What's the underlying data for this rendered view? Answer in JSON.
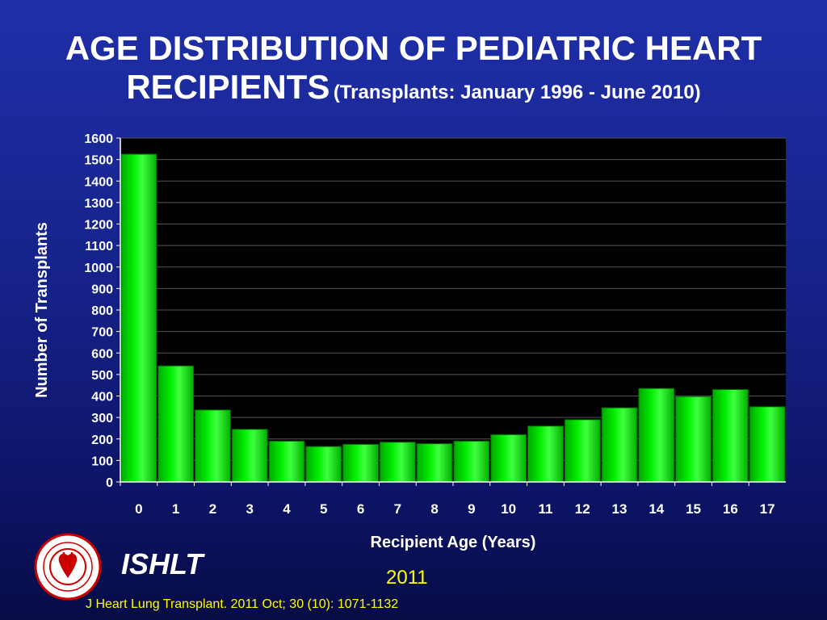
{
  "slide": {
    "title_main_line1": "AGE DISTRIBUTION OF PEDIATRIC HEART",
    "title_main_line2": "RECIPIENTS",
    "title_sub": "(Transplants: January 1996 - June 2010)",
    "org_name": "ISHLT",
    "year": "2011",
    "citation": "J Heart Lung Transplant. 2011 Oct; 30 (10): 1071-1132",
    "logo_icon": "ishlt-seal-icon"
  },
  "chart_data": {
    "type": "bar",
    "title": "",
    "xlabel": "Recipient Age (Years)",
    "ylabel": "Number of Transplants",
    "categories": [
      "0",
      "1",
      "2",
      "3",
      "4",
      "5",
      "6",
      "7",
      "8",
      "9",
      "10",
      "11",
      "12",
      "13",
      "14",
      "15",
      "16",
      "17"
    ],
    "values": [
      1525,
      540,
      335,
      245,
      190,
      165,
      175,
      185,
      178,
      190,
      220,
      260,
      290,
      345,
      435,
      397,
      430,
      350
    ],
    "ylim": [
      0,
      1600
    ],
    "yticks": [
      0,
      100,
      200,
      300,
      400,
      500,
      600,
      700,
      800,
      900,
      1000,
      1100,
      1200,
      1300,
      1400,
      1500,
      1600
    ],
    "grid": true,
    "legend": "none",
    "colors": {
      "bar": "#00ee00",
      "plot_background": "#000000",
      "grid": "#555555",
      "text": "#ffffff"
    }
  }
}
